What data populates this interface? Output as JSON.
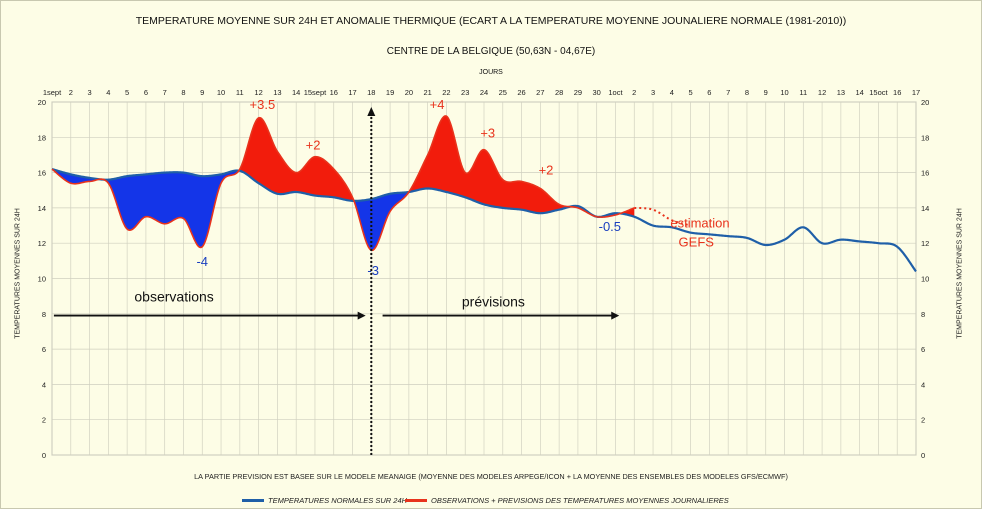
{
  "chart_data": {
    "type": "area",
    "title": "TEMPERATURE MOYENNE SUR 24H ET  ANOMALIE THERMIQUE (ECART A LA TEMPERATURE MOYENNE JOUNALIERE NORMALE (1981-2010))",
    "subtitle": "CENTRE DE LA BELGIQUE (50,63N - 04,67E)",
    "xlabel": "JOURS",
    "ylabel": "TEMPERATURES MOYENNES SUR 24H",
    "ylim": [
      0,
      20
    ],
    "yticks": [
      0,
      2,
      4,
      6,
      8,
      10,
      12,
      14,
      16,
      18,
      20
    ],
    "xlim": [
      1,
      47
    ],
    "x_tick_labels": [
      "1sept",
      "2",
      "3",
      "4",
      "5",
      "6",
      "7",
      "8",
      "9",
      "10",
      "11",
      "12",
      "13",
      "14",
      "15sept",
      "16",
      "17",
      "18",
      "19",
      "20",
      "21",
      "22",
      "23",
      "24",
      "25",
      "26",
      "27",
      "28",
      "29",
      "30",
      "1oct",
      "2",
      "3",
      "4",
      "5",
      "6",
      "7",
      "8",
      "9",
      "10",
      "11",
      "12",
      "13",
      "14",
      "15oct",
      "16",
      "17"
    ],
    "grid": true,
    "legend_position": "bottom",
    "note": "LA PARTIE PREVISION EST BASEE SUR LE MODELE MEANAIGE (MOYENNE DES MODELES ARPEGE/ICON + LA MOYENNE DES ENSEMBLES DES MODELES GFS/ECMWF)",
    "series": [
      {
        "name": "TEMPERATURES NORMALES SUR 24H",
        "color": "#1f5fa8",
        "x": [
          1,
          2,
          3,
          4,
          5,
          6,
          7,
          8,
          9,
          10,
          11,
          12,
          13,
          14,
          15,
          16,
          17,
          18,
          19,
          20,
          21,
          22,
          23,
          24,
          25,
          26,
          27,
          28,
          29,
          30,
          31,
          32,
          33,
          34,
          35,
          36,
          37,
          38,
          39,
          40,
          41,
          42,
          43,
          44,
          45,
          46,
          47
        ],
        "values": [
          16.2,
          15.9,
          15.7,
          15.6,
          15.8,
          15.9,
          16.0,
          16.0,
          15.8,
          15.9,
          16.1,
          15.4,
          14.8,
          14.9,
          14.7,
          14.6,
          14.4,
          14.5,
          14.8,
          14.9,
          15.1,
          14.9,
          14.6,
          14.2,
          14.0,
          13.9,
          13.7,
          13.9,
          14.1,
          13.5,
          13.7,
          13.5,
          13.0,
          12.9,
          12.6,
          12.5,
          12.4,
          12.3,
          11.9,
          12.2,
          12.9,
          12.0,
          12.2,
          12.1,
          12.0,
          11.8,
          10.4
        ]
      },
      {
        "name": "OBSERVATIONS + PREVISIONS DES TEMPERATURES MOYENNES JOURNALIERES",
        "color": "#e8331c",
        "x": [
          1,
          2,
          3,
          4,
          5,
          6,
          7,
          8,
          9,
          10,
          11,
          12,
          13,
          14,
          15,
          16,
          17,
          18,
          19,
          20,
          21,
          22,
          23,
          24,
          25,
          26,
          27,
          28,
          29,
          30,
          31,
          32
        ],
        "values": [
          16.2,
          15.4,
          15.5,
          15.4,
          12.8,
          13.5,
          13.1,
          13.4,
          11.8,
          15.4,
          16.2,
          19.1,
          17.2,
          16.0,
          16.9,
          16.2,
          14.6,
          11.6,
          13.8,
          14.9,
          17.0,
          19.2,
          16.0,
          17.3,
          15.6,
          15.5,
          15.1,
          14.2,
          14.0,
          13.5,
          13.6,
          14.0
        ],
        "estimation_x": [
          32,
          33,
          34,
          35
        ],
        "estimation_values": [
          14.0,
          13.9,
          13.3,
          13.0
        ]
      }
    ],
    "annotations": {
      "anomalies": [
        {
          "label": "-4",
          "color": "#1a3fbf",
          "x": 9,
          "y": 10.7
        },
        {
          "label": "+3.5",
          "color": "#e8331c",
          "x": 12.2,
          "y": 19.6
        },
        {
          "label": "+2",
          "color": "#e8331c",
          "x": 14.9,
          "y": 17.3
        },
        {
          "label": "-3",
          "color": "#1a3fbf",
          "x": 18.1,
          "y": 10.2
        },
        {
          "label": "+4",
          "color": "#e8331c",
          "x": 21.5,
          "y": 19.6
        },
        {
          "label": "+3",
          "color": "#e8331c",
          "x": 24.2,
          "y": 18.0
        },
        {
          "label": "+2",
          "color": "#e8331c",
          "x": 27.3,
          "y": 15.9
        },
        {
          "label": "-0.5",
          "color": "#1a3fbf",
          "x": 30.7,
          "y": 12.7
        }
      ],
      "estimation": {
        "line1": "estimation",
        "line2": "GEFS",
        "color": "#e8331c"
      },
      "observations_label": "observations",
      "previsions_label": "prévisions",
      "boundary_day": 18
    }
  },
  "legend": {
    "normal": "TEMPERATURES NORMALES SUR 24H",
    "observed": "OBSERVATIONS + PREVISIONS DES TEMPERATURES MOYENNES JOURNALIERES"
  }
}
